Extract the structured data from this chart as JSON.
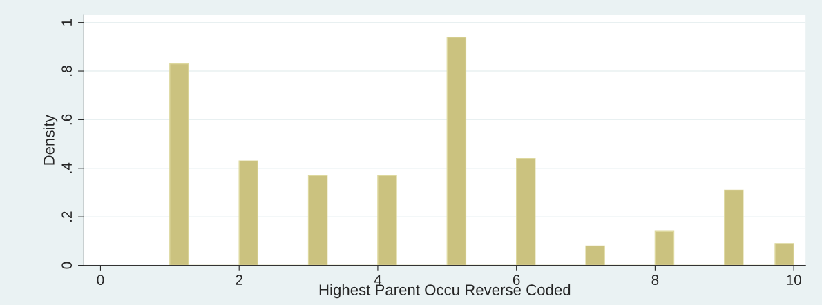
{
  "chart_data": {
    "type": "histogram",
    "xlabel": "Highest Parent Occu Reverse Coded",
    "ylabel": "Density",
    "bins": [
      1,
      1.27,
      2,
      2.27,
      3,
      3.27,
      4,
      4.27,
      5,
      5.27,
      6,
      6.27,
      7,
      7.27,
      8,
      8.27,
      9,
      9.27,
      9.73,
      10
    ],
    "values": [
      0.83,
      0,
      0.43,
      0,
      0.37,
      0,
      0.37,
      0,
      0.94,
      0,
      0.44,
      0,
      0.08,
      0,
      0.14,
      0,
      0.31,
      0,
      0.09
    ],
    "color": "#cbc27f",
    "xlim": [
      -0.24,
      10.17
    ],
    "xticks": [
      0,
      2,
      4,
      6,
      8,
      10
    ],
    "ylim": [
      0,
      1.03
    ],
    "yticks": [
      0,
      {
        "value": 0.2,
        "label": ".2"
      },
      {
        "value": 0.4,
        "label": ".4"
      },
      {
        "value": 0.6,
        "label": ".6"
      },
      {
        "value": 0.8,
        "label": ".8"
      },
      1
    ],
    "grid": "y"
  }
}
